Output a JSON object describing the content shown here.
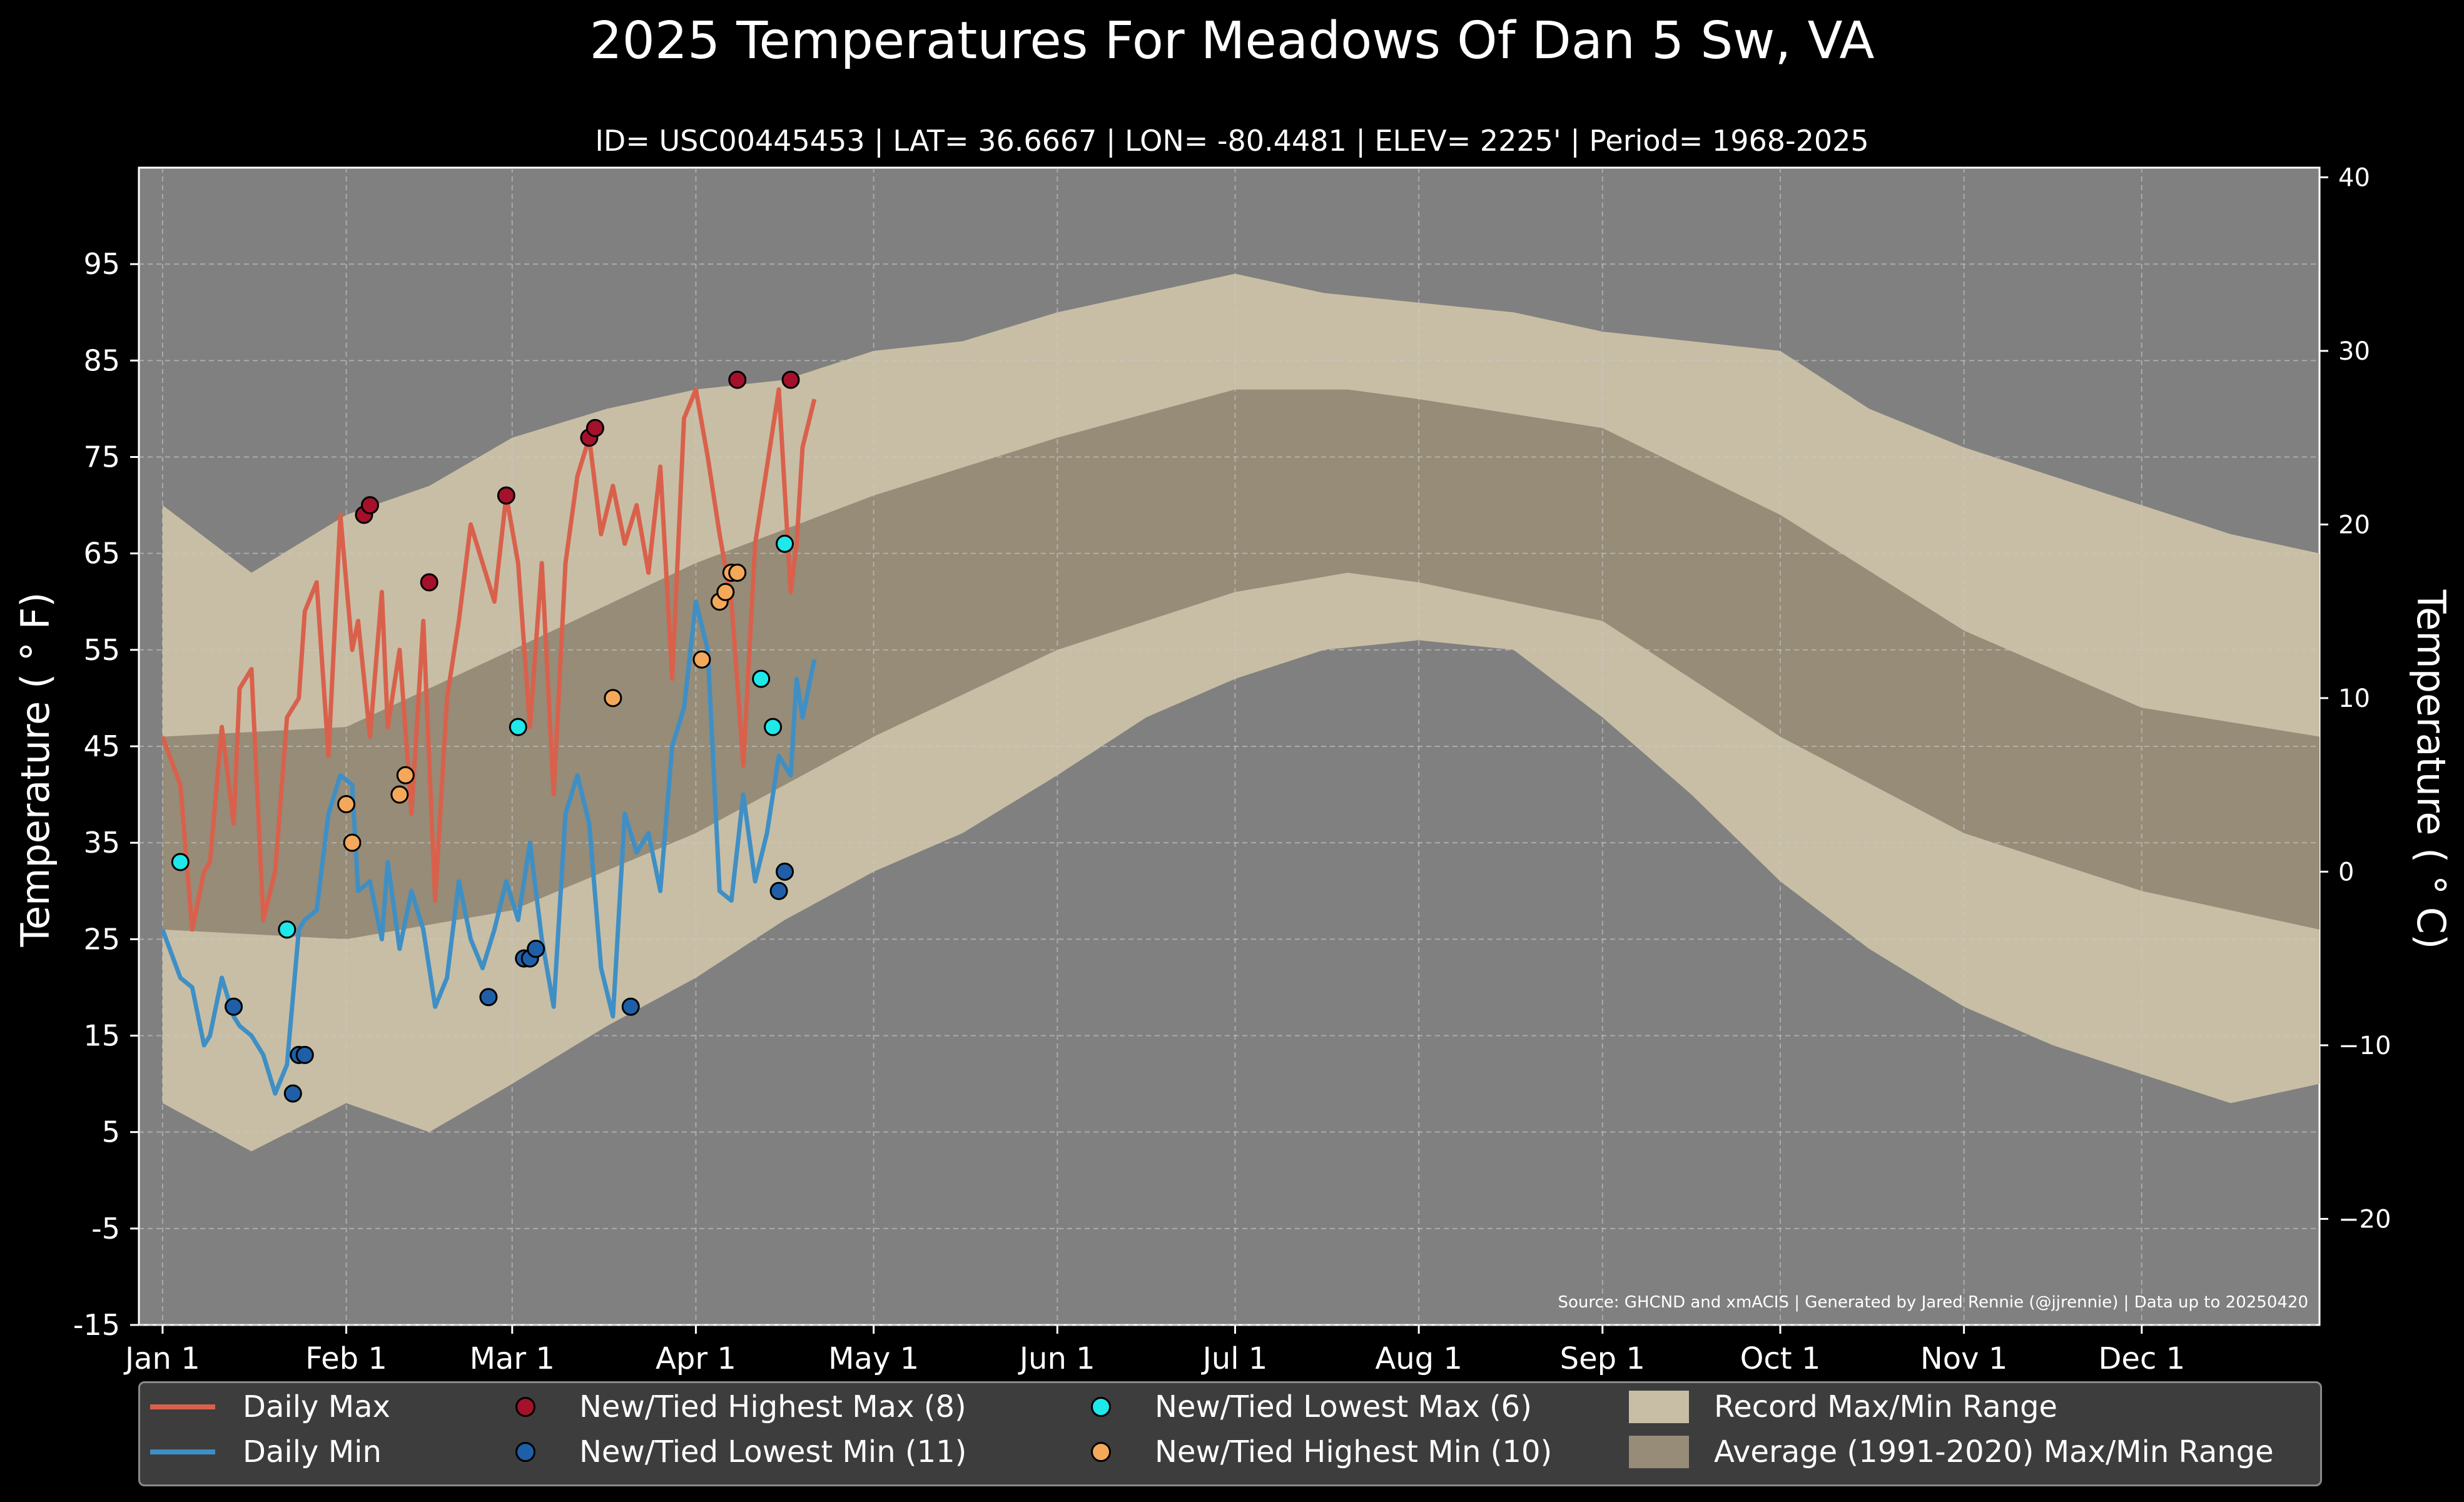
{
  "title": "2025 Temperatures For Meadows Of Dan 5 Sw, VA",
  "subtitle": "ID= USC00445453 | LAT= 36.6667 | LON= -80.4481 | ELEV= 2225' | Period= 1968-2025",
  "source_note": "Source: GHCND and xmACIS | Generated by Jared Rennie (@jjrennie) | Data up to 20250420",
  "colors": {
    "background": "#000000",
    "plot_bg": "#808080",
    "record_range": "#c8bea5",
    "normal_range": "#968c78",
    "daily_max": "#d9614c",
    "daily_min": "#3f8fc5",
    "new_high_max": "#a5102a",
    "new_low_min": "#1f5fa8",
    "new_low_max": "#1ee8ea",
    "new_high_min": "#f4a85a"
  },
  "legend": [
    {
      "key": "daily_max",
      "label": "Daily Max",
      "kind": "line"
    },
    {
      "key": "daily_min",
      "label": "Daily Min",
      "kind": "line"
    },
    {
      "key": "new_high_max",
      "label": "New/Tied Highest Max (8)",
      "kind": "dot"
    },
    {
      "key": "new_low_min",
      "label": "New/Tied Lowest Min (11)",
      "kind": "dot"
    },
    {
      "key": "new_low_max",
      "label": "New/Tied Lowest Max (6)",
      "kind": "dot"
    },
    {
      "key": "new_high_min",
      "label": "New/Tied Highest Min (10)",
      "kind": "dot"
    },
    {
      "key": "record_range",
      "label": "Record Max/Min Range",
      "kind": "box"
    },
    {
      "key": "normal_range",
      "label": "Average (1991-2020) Max/Min Range",
      "kind": "box"
    }
  ],
  "chart_data": {
    "type": "line",
    "title": "2025 Temperatures For Meadows Of Dan 5 Sw, VA",
    "ylabel_left": "Temperature ( ° F)",
    "ylabel_right": "Temperature ( ° C)",
    "ylim_f": [
      -15,
      105
    ],
    "yticks_f": [
      -15,
      -5,
      5,
      15,
      25,
      35,
      45,
      55,
      65,
      75,
      85,
      95
    ],
    "yticks_c": [
      -20,
      -10,
      0,
      10,
      20,
      30,
      40
    ],
    "xlim_day": [
      -4,
      364
    ],
    "xticks": [
      {
        "day": 0,
        "label": "Jan 1"
      },
      {
        "day": 31,
        "label": "Feb 1"
      },
      {
        "day": 59,
        "label": "Mar 1"
      },
      {
        "day": 90,
        "label": "Apr 1"
      },
      {
        "day": 120,
        "label": "May 1"
      },
      {
        "day": 151,
        "label": "Jun 1"
      },
      {
        "day": 181,
        "label": "Jul 1"
      },
      {
        "day": 212,
        "label": "Aug 1"
      },
      {
        "day": 243,
        "label": "Sep 1"
      },
      {
        "day": 273,
        "label": "Oct 1"
      },
      {
        "day": 304,
        "label": "Nov 1"
      },
      {
        "day": 334,
        "label": "Dec 1"
      }
    ],
    "grid": true,
    "legend_position": "bottom",
    "normal_range": {
      "day": [
        0,
        31,
        59,
        90,
        120,
        151,
        181,
        200,
        212,
        243,
        273,
        304,
        334,
        364
      ],
      "max": [
        46,
        47,
        55,
        64,
        71,
        77,
        82,
        82,
        81,
        78,
        69,
        57,
        49,
        46
      ],
      "min": [
        26,
        25,
        28,
        36,
        46,
        55,
        61,
        63,
        62,
        58,
        46,
        36,
        30,
        26
      ]
    },
    "record_range": {
      "day": [
        0,
        15,
        31,
        45,
        59,
        75,
        90,
        105,
        120,
        135,
        151,
        166,
        181,
        196,
        212,
        228,
        243,
        258,
        273,
        288,
        304,
        319,
        334,
        349,
        364
      ],
      "max": [
        70,
        63,
        69,
        72,
        77,
        80,
        82,
        83,
        86,
        87,
        90,
        92,
        94,
        92,
        91,
        90,
        88,
        87,
        86,
        80,
        76,
        73,
        70,
        67,
        65
      ],
      "min": [
        8,
        3,
        8,
        5,
        10,
        16,
        21,
        27,
        32,
        36,
        42,
        48,
        52,
        55,
        56,
        55,
        48,
        40,
        31,
        24,
        18,
        14,
        11,
        8,
        10
      ]
    },
    "series": [
      {
        "name": "Daily Max",
        "x": [
          0,
          3,
          5,
          7,
          8,
          10,
          12,
          13,
          15,
          17,
          19,
          21,
          23,
          24,
          26,
          28,
          30,
          32,
          33,
          35,
          37,
          38,
          40,
          42,
          44,
          46,
          48,
          50,
          52,
          54,
          56,
          58,
          60,
          62,
          64,
          66,
          68,
          70,
          72,
          74,
          76,
          78,
          80,
          82,
          84,
          86,
          88,
          90,
          92,
          94,
          96,
          98,
          100,
          102,
          104,
          106,
          107,
          108,
          110
        ],
        "y": [
          46,
          41,
          26,
          32,
          33,
          47,
          37,
          51,
          53,
          27,
          32,
          48,
          50,
          59,
          62,
          44,
          69,
          55,
          58,
          46,
          61,
          47,
          55,
          38,
          58,
          29,
          50,
          58,
          68,
          64,
          60,
          71,
          64,
          47,
          64,
          40,
          64,
          73,
          77,
          67,
          72,
          66,
          70,
          63,
          74,
          52,
          79,
          82,
          75,
          67,
          60,
          43,
          66,
          74,
          82,
          61,
          66,
          76,
          81
        ]
      },
      {
        "name": "Daily Min",
        "x": [
          0,
          3,
          5,
          7,
          8,
          10,
          12,
          13,
          15,
          17,
          19,
          21,
          23,
          24,
          26,
          28,
          30,
          32,
          33,
          35,
          37,
          38,
          40,
          42,
          44,
          46,
          48,
          50,
          52,
          54,
          56,
          58,
          60,
          62,
          64,
          66,
          68,
          70,
          72,
          74,
          76,
          78,
          80,
          82,
          84,
          86,
          88,
          90,
          92,
          94,
          96,
          98,
          100,
          102,
          104,
          106,
          107,
          108,
          110
        ],
        "y": [
          26,
          21,
          20,
          14,
          15,
          21,
          17,
          16,
          15,
          13,
          9,
          12,
          26,
          27,
          28,
          38,
          42,
          41,
          30,
          31,
          25,
          33,
          24,
          30,
          26,
          18,
          21,
          31,
          25,
          22,
          26,
          31,
          27,
          35,
          25,
          18,
          38,
          42,
          37,
          22,
          17,
          38,
          34,
          36,
          30,
          45,
          49,
          60,
          55,
          30,
          29,
          40,
          31,
          36,
          44,
          42,
          52,
          48,
          54
        ]
      }
    ],
    "markers": {
      "new_high_max": {
        "x": [
          34,
          35,
          45,
          58,
          72,
          73,
          97,
          106
        ],
        "y": [
          69,
          70,
          62,
          71,
          77,
          78,
          83,
          83
        ]
      },
      "new_low_min": {
        "x": [
          12,
          22,
          23,
          24,
          55,
          61,
          62,
          63,
          79,
          104,
          105
        ],
        "y": [
          18,
          9,
          13,
          13,
          19,
          23,
          23,
          24,
          18,
          30,
          32
        ]
      },
      "new_low_max": {
        "x": [
          3,
          21,
          60,
          101,
          103,
          105
        ],
        "y": [
          33,
          26,
          47,
          52,
          47,
          66
        ]
      },
      "new_high_min": {
        "x": [
          31,
          32,
          40,
          41,
          76,
          91,
          94,
          95,
          96,
          97
        ],
        "y": [
          39,
          35,
          40,
          42,
          50,
          54,
          60,
          61,
          63,
          63
        ]
      }
    }
  }
}
